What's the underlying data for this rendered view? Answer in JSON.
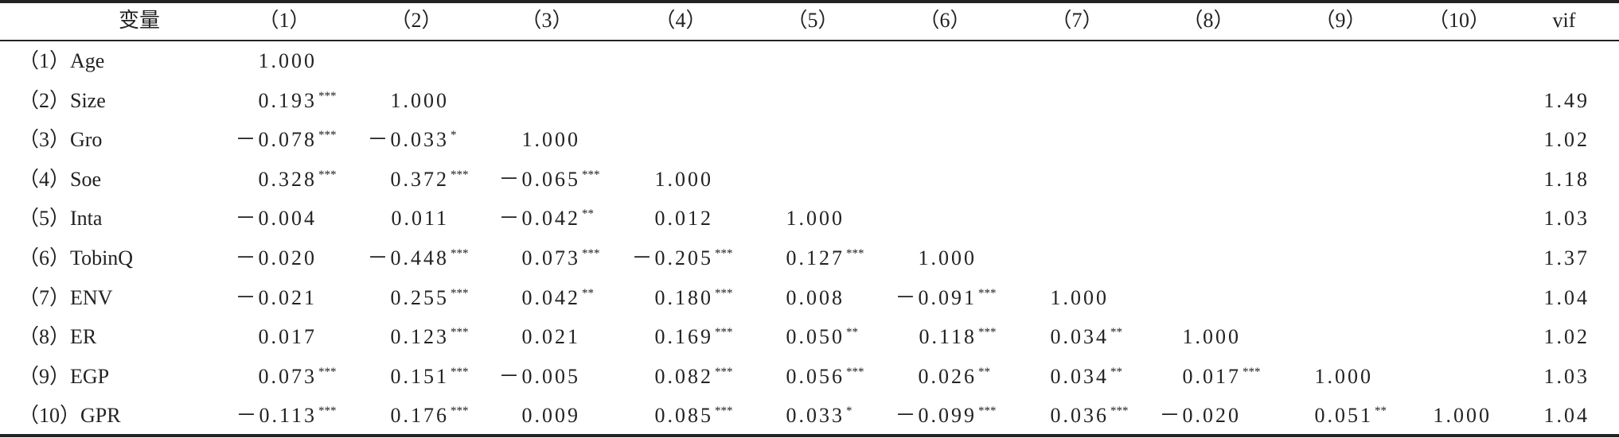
{
  "table": {
    "header": [
      "变量",
      "（1）",
      "（2）",
      "（3）",
      "（4）",
      "（5）",
      "（6）",
      "（7）",
      "（8）",
      "（9）",
      "（10）",
      "vif"
    ],
    "rows": [
      [
        "（1）Age",
        "1.000",
        null,
        null,
        null,
        null,
        null,
        null,
        null,
        null,
        null,
        null
      ],
      [
        "（2）Size",
        {
          "v": "0.193",
          "sig": "***"
        },
        "1.000",
        null,
        null,
        null,
        null,
        null,
        null,
        null,
        null,
        "1.49"
      ],
      [
        "（3）Gro",
        {
          "v": "－0.078",
          "sig": "***"
        },
        {
          "v": "－0.033",
          "sig": "*"
        },
        "1.000",
        null,
        null,
        null,
        null,
        null,
        null,
        null,
        "1.02"
      ],
      [
        "（4）Soe",
        {
          "v": "0.328",
          "sig": "***"
        },
        {
          "v": "0.372",
          "sig": "***"
        },
        {
          "v": "－0.065",
          "sig": "***"
        },
        "1.000",
        null,
        null,
        null,
        null,
        null,
        null,
        "1.18"
      ],
      [
        "（5）Inta",
        "－0.004",
        "0.011",
        {
          "v": "－0.042",
          "sig": "**"
        },
        "0.012",
        "1.000",
        null,
        null,
        null,
        null,
        null,
        "1.03"
      ],
      [
        "（6）TobinQ",
        "－0.020",
        {
          "v": "－0.448",
          "sig": "***"
        },
        {
          "v": "0.073",
          "sig": "***"
        },
        {
          "v": "－0.205",
          "sig": "***"
        },
        {
          "v": "0.127",
          "sig": "***"
        },
        "1.000",
        null,
        null,
        null,
        null,
        "1.37"
      ],
      [
        "（7）ENV",
        "－0.021",
        {
          "v": "0.255",
          "sig": "***"
        },
        {
          "v": "0.042",
          "sig": "**"
        },
        {
          "v": "0.180",
          "sig": "***"
        },
        "0.008",
        {
          "v": "－0.091",
          "sig": "***"
        },
        "1.000",
        null,
        null,
        null,
        "1.04"
      ],
      [
        "（8）ER",
        "0.017",
        {
          "v": "0.123",
          "sig": "***"
        },
        "0.021",
        {
          "v": "0.169",
          "sig": "***"
        },
        {
          "v": "0.050",
          "sig": "**"
        },
        {
          "v": "0.118",
          "sig": "***"
        },
        {
          "v": "0.034",
          "sig": "**"
        },
        "1.000",
        null,
        null,
        "1.02"
      ],
      [
        "（9）EGP",
        {
          "v": "0.073",
          "sig": "***"
        },
        {
          "v": "0.151",
          "sig": "***"
        },
        "－0.005",
        {
          "v": "0.082",
          "sig": "***"
        },
        {
          "v": "0.056",
          "sig": "***"
        },
        {
          "v": "0.026",
          "sig": "**"
        },
        {
          "v": "0.034",
          "sig": "**"
        },
        {
          "v": "0.017",
          "sig": "***"
        },
        "1.000",
        null,
        "1.03"
      ],
      [
        "（10）GPR",
        {
          "v": "－0.113",
          "sig": "***"
        },
        {
          "v": "0.176",
          "sig": "***"
        },
        "0.009",
        {
          "v": "0.085",
          "sig": "***"
        },
        {
          "v": "0.033",
          "sig": "*"
        },
        {
          "v": "－0.099",
          "sig": "***"
        },
        {
          "v": "0.036",
          "sig": "***"
        },
        "－0.020",
        {
          "v": "0.051",
          "sig": "**"
        },
        "1.000",
        "1.04"
      ]
    ]
  }
}
